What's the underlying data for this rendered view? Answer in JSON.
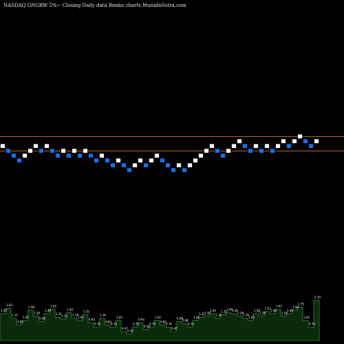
{
  "chart_data": {
    "type": "renko",
    "title": "NASDAQ GNGBW 5%~  Closing Daily data  Renko  charts MunafaSutra.com",
    "colors": {
      "background": "#000000",
      "up_brick": "#ffffff",
      "down_brick": "#1e6fe8",
      "brick_outline": "#000000",
      "reference_line": "#b5651d",
      "volume_fill": "#0b2a0b",
      "volume_stroke": "#2e8b2e",
      "volume_label": "#ffffff"
    },
    "bricks": {
      "brick_size_pct": 5,
      "levels": [
        1,
        0,
        -1,
        -2,
        -1,
        0,
        1,
        0,
        1,
        0,
        -1,
        0,
        -1,
        0,
        -1,
        0,
        -1,
        -2,
        -1,
        -2,
        -3,
        -2,
        -3,
        -4,
        -3,
        -2,
        -3,
        -2,
        -1,
        -2,
        -3,
        -4,
        -3,
        -4,
        -3,
        -2,
        -1,
        0,
        1,
        0,
        -1,
        0,
        1,
        2,
        1,
        0,
        1,
        0,
        1,
        0,
        1,
        2,
        1,
        2,
        3,
        2,
        1,
        2
      ],
      "directions": [
        "up",
        "down",
        "down",
        "down",
        "up",
        "up",
        "up",
        "down",
        "up",
        "down",
        "down",
        "up",
        "down",
        "up",
        "down",
        "up",
        "down",
        "down",
        "up",
        "down",
        "down",
        "up",
        "down",
        "down",
        "up",
        "up",
        "down",
        "up",
        "up",
        "down",
        "down",
        "down",
        "up",
        "down",
        "up",
        "up",
        "up",
        "up",
        "up",
        "down",
        "down",
        "up",
        "up",
        "up",
        "down",
        "down",
        "up",
        "down",
        "up",
        "down",
        "up",
        "up",
        "down",
        "up",
        "up",
        "down",
        "down",
        "up"
      ]
    },
    "reference_levels": [
      2.5,
      -0.5
    ],
    "volume": {
      "values": [
        0.6,
        0.72,
        0.5,
        0.35,
        0.45,
        0.68,
        0.55,
        0.42,
        0.6,
        0.7,
        0.52,
        0.48,
        0.62,
        0.5,
        0.45,
        0.58,
        0.4,
        0.3,
        0.5,
        0.35,
        0.3,
        0.45,
        0.2,
        0.15,
        0.3,
        0.4,
        0.25,
        0.3,
        0.45,
        0.35,
        0.3,
        0.2,
        0.42,
        0.38,
        0.3,
        0.45,
        0.52,
        0.55,
        0.6,
        0.5,
        0.58,
        0.62,
        0.6,
        0.55,
        0.5,
        0.45,
        0.6,
        0.55,
        0.65,
        0.6,
        0.7,
        0.55,
        0.6,
        0.68,
        0.75,
        0.45,
        0.3,
        0.9
      ],
      "labels": [
        "1.47",
        "1.63",
        "1.15",
        "0.82",
        "1.05",
        "1.58",
        "1.28",
        "0.98",
        "1.40",
        "1.63",
        "1.21",
        "1.12",
        "1.44",
        "1.16",
        "1.05",
        "1.35",
        "0.93",
        "0.70",
        "1.16",
        "0.82",
        "0.70",
        "1.05",
        "0.47",
        "0.35",
        "0.70",
        "0.93",
        "0.58",
        "0.70",
        "1.05",
        "0.82",
        "0.70",
        "0.47",
        "0.98",
        "0.88",
        "0.70",
        "1.05",
        "1.21",
        "1.28",
        "1.40",
        "1.16",
        "1.35",
        "1.44",
        "1.40",
        "1.28",
        "1.16",
        "1.05",
        "1.40",
        "1.28",
        "1.51",
        "1.40",
        "1.63",
        "1.28",
        "1.40",
        "1.58",
        "1.75",
        "1.05",
        "0.70",
        "2.10"
      ]
    }
  }
}
